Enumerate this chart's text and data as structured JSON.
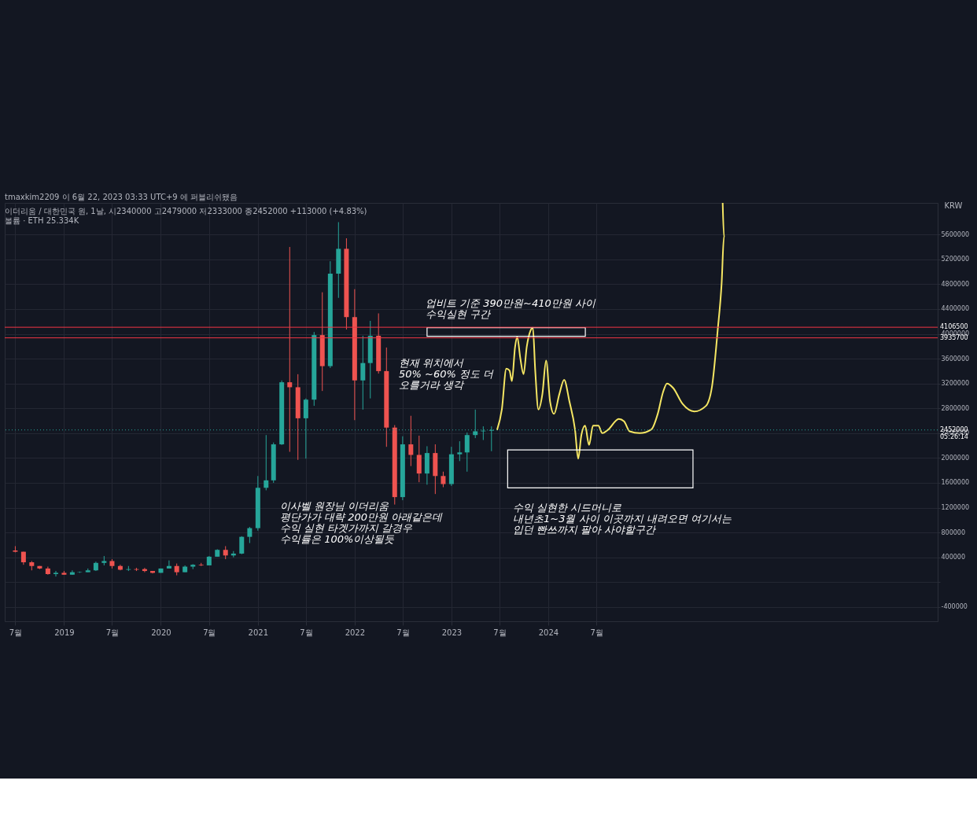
{
  "chart_data": {
    "type": "candlestick",
    "title": "tmaxkim2209 이 6월 22, 2023 03:33 UTC+9 에 퍼블리쉬됐음",
    "subtitle": "이더리움 / 대한민국 원, 1날, 시2340000 고2479000 저2333000 종2452000 +113000 (+4.83%)\n볼륨 · ETH 25.334K",
    "ylabel": "KRW",
    "x": [
      "2018-07",
      "2018-08",
      "2018-09",
      "2018-10",
      "2018-11",
      "2018-12",
      "2019-01",
      "2019-02",
      "2019-03",
      "2019-04",
      "2019-05",
      "2019-06",
      "2019-07",
      "2019-08",
      "2019-09",
      "2019-10",
      "2019-11",
      "2019-12",
      "2020-01",
      "2020-02",
      "2020-03",
      "2020-04",
      "2020-05",
      "2020-06",
      "2020-07",
      "2020-08",
      "2020-09",
      "2020-10",
      "2020-11",
      "2020-12",
      "2021-01",
      "2021-02",
      "2021-03",
      "2021-04",
      "2021-05",
      "2021-06",
      "2021-07",
      "2021-08",
      "2021-09",
      "2021-10",
      "2021-11",
      "2021-12",
      "2022-01",
      "2022-02",
      "2022-03",
      "2022-04",
      "2022-05",
      "2022-06",
      "2022-07",
      "2022-08",
      "2022-09",
      "2022-10",
      "2022-11",
      "2022-12",
      "2023-01",
      "2023-02",
      "2023-03",
      "2023-04",
      "2023-05",
      "2023-06"
    ],
    "ohlc": [
      [
        510000,
        580000,
        480000,
        490000
      ],
      [
        490000,
        490000,
        280000,
        320000
      ],
      [
        320000,
        340000,
        190000,
        260000
      ],
      [
        260000,
        260000,
        210000,
        220000
      ],
      [
        220000,
        250000,
        120000,
        130000
      ],
      [
        130000,
        180000,
        90000,
        150000
      ],
      [
        150000,
        180000,
        120000,
        120000
      ],
      [
        120000,
        190000,
        120000,
        160000
      ],
      [
        160000,
        170000,
        150000,
        165000
      ],
      [
        160000,
        220000,
        160000,
        190000
      ],
      [
        190000,
        330000,
        180000,
        310000
      ],
      [
        310000,
        420000,
        270000,
        340000
      ],
      [
        340000,
        370000,
        220000,
        260000
      ],
      [
        260000,
        280000,
        190000,
        200000
      ],
      [
        200000,
        260000,
        180000,
        210000
      ],
      [
        210000,
        230000,
        180000,
        200000
      ],
      [
        210000,
        230000,
        160000,
        180000
      ],
      [
        180000,
        180000,
        140000,
        150000
      ],
      [
        150000,
        220000,
        150000,
        220000
      ],
      [
        220000,
        350000,
        220000,
        260000
      ],
      [
        260000,
        300000,
        110000,
        160000
      ],
      [
        160000,
        270000,
        160000,
        250000
      ],
      [
        250000,
        290000,
        210000,
        280000
      ],
      [
        280000,
        310000,
        260000,
        270000
      ],
      [
        270000,
        420000,
        270000,
        410000
      ],
      [
        410000,
        530000,
        410000,
        520000
      ],
      [
        520000,
        580000,
        370000,
        430000
      ],
      [
        430000,
        500000,
        400000,
        460000
      ],
      [
        460000,
        740000,
        450000,
        730000
      ],
      [
        730000,
        890000,
        630000,
        870000
      ],
      [
        870000,
        1710000,
        830000,
        1520000
      ],
      [
        1520000,
        2370000,
        1480000,
        1640000
      ],
      [
        1640000,
        2250000,
        1600000,
        2220000
      ],
      [
        2220000,
        3250000,
        2210000,
        3220000
      ],
      [
        3220000,
        5400000,
        2100000,
        3140000
      ],
      [
        3140000,
        3350000,
        1970000,
        2640000
      ],
      [
        2640000,
        2960000,
        1990000,
        2940000
      ],
      [
        2940000,
        4030000,
        2840000,
        3980000
      ],
      [
        3980000,
        4670000,
        3080000,
        3480000
      ],
      [
        3480000,
        5170000,
        3450000,
        4970000
      ],
      [
        4970000,
        5800000,
        4580000,
        5370000
      ],
      [
        5370000,
        5540000,
        4070000,
        4270000
      ],
      [
        4270000,
        4720000,
        2610000,
        3250000
      ],
      [
        3250000,
        3970000,
        2780000,
        3530000
      ],
      [
        3530000,
        4210000,
        2960000,
        3970000
      ],
      [
        3970000,
        4330000,
        3360000,
        3400000
      ],
      [
        3400000,
        3780000,
        2180000,
        2490000
      ],
      [
        2490000,
        2530000,
        1250000,
        1370000
      ],
      [
        1370000,
        2350000,
        1320000,
        2220000
      ],
      [
        2220000,
        2680000,
        1870000,
        2050000
      ],
      [
        2050000,
        2360000,
        1610000,
        1750000
      ],
      [
        1750000,
        2190000,
        1570000,
        2080000
      ],
      [
        2080000,
        2220000,
        1420000,
        1710000
      ],
      [
        1710000,
        1780000,
        1530000,
        1580000
      ],
      [
        1580000,
        2180000,
        1550000,
        2060000
      ],
      [
        2060000,
        2270000,
        1950000,
        2090000
      ],
      [
        2090000,
        2410000,
        1780000,
        2370000
      ],
      [
        2370000,
        2780000,
        2320000,
        2430000
      ],
      [
        2430000,
        2510000,
        2290000,
        2440000
      ],
      [
        2440000,
        2510000,
        2110000,
        2452000
      ]
    ],
    "series": [
      {
        "type": "line",
        "color": "#f5e663",
        "x": [
          "2023-06-22",
          "2023-07-10",
          "2023-07-27",
          "2023-08-08",
          "2023-08-17",
          "2023-08-29",
          "2023-09-06",
          "2023-09-18",
          "2023-09-30",
          "2023-10-12",
          "2023-10-26",
          "2023-11-04",
          "2023-11-13",
          "2023-11-25",
          "2023-12-10",
          "2023-12-24",
          "2024-01-08",
          "2024-01-23",
          "2024-02-12",
          "2024-03-01",
          "2024-03-21",
          "2024-04-11",
          "2024-04-23",
          "2024-05-05",
          "2024-05-19",
          "2024-06-03",
          "2024-06-18",
          "2024-07-08",
          "2024-07-23",
          "2024-08-15",
          "2024-09-23",
          "2024-10-13",
          "2024-11-03",
          "2024-12-11",
          "2025-01-24",
          "2025-02-17",
          "2025-03-09",
          "2025-03-24",
          "2025-04-16",
          "2025-05-22",
          "2025-07-05",
          "2025-08-18",
          "2025-09-10",
          "2025-10-01",
          "2025-10-16",
          "2025-10-25",
          "2025-10-20"
        ],
        "values": [
          2450000,
          2780000,
          3440000,
          3410000,
          3240000,
          3790000,
          3950000,
          3600000,
          3350000,
          3790000,
          4050000,
          4100000,
          3410000,
          2780000,
          3030000,
          3570000,
          2910000,
          2710000,
          3030000,
          3260000,
          2910000,
          2460000,
          1990000,
          2370000,
          2520000,
          2210000,
          2520000,
          2520000,
          2400000,
          2460000,
          2630000,
          2590000,
          2430000,
          2400000,
          2460000,
          2710000,
          3060000,
          3200000,
          3130000,
          2870000,
          2750000,
          2840000,
          3160000,
          4050000,
          4810000,
          5570000,
          6110000
        ]
      }
    ],
    "ylim": [
      -630000,
      6110000
    ],
    "yticks": [
      -400000,
      {
        "value": 0,
        "label": null
      },
      400000,
      800000,
      1200000,
      1600000,
      2000000,
      2400000,
      2800000,
      3200000,
      3600000,
      4000000,
      4400000,
      4800000,
      5200000,
      5600000
    ],
    "xlim": [
      "2018-06-06",
      "2027-12-25"
    ],
    "xticks": [
      {
        "value": "2018-07-01",
        "label": "7월"
      },
      {
        "value": "2019-01-01",
        "label": "2019"
      },
      {
        "value": "2019-07-01",
        "label": "7월"
      },
      {
        "value": "2020-01-01",
        "label": "2020"
      },
      {
        "value": "2020-07-01",
        "label": "7월"
      },
      {
        "value": "2021-01-01",
        "label": "2021"
      },
      {
        "value": "2021-07-01",
        "label": "7월"
      },
      {
        "value": "2022-01-01",
        "label": "2022"
      },
      {
        "value": "2022-07-01",
        "label": "7월"
      },
      {
        "value": "2023-01-01",
        "label": "2023"
      },
      {
        "value": "2023-07-01",
        "label": "7월"
      },
      {
        "value": "2024-01-01",
        "label": "2024"
      },
      {
        "value": "2024-07-01",
        "label": "7월"
      }
    ],
    "ref_lines": [
      {
        "axis": "y",
        "value": 4106500,
        "label": "4106500",
        "color": "#f23645"
      },
      {
        "axis": "y",
        "value": 3935700,
        "label": "3935700",
        "color": "#f23645"
      },
      {
        "axis": "y",
        "value": 2452000,
        "label": "2452000\n05:26:14",
        "color": "#26a69a",
        "line_style": "dotted"
      }
    ],
    "annotations": [
      "업비트 기준 390만원~410만원 사이\n수익실현 구간",
      "현재 위치에서\n50% ~60% 정도 더\n오를거라 생각",
      "이사벨 원장님 이더리움\n평단가가 대략 200만원 아래같은데\n수익 실현 타겟가까지 갈경우\n수익률은 100%이상될듯",
      "수익 실현한 시드머니로\n내년초1~3월 사이 이곳까지 내려오면 여기서는\n입던 빤쓰까지 팔아 사야할구간"
    ],
    "grid": true
  }
}
